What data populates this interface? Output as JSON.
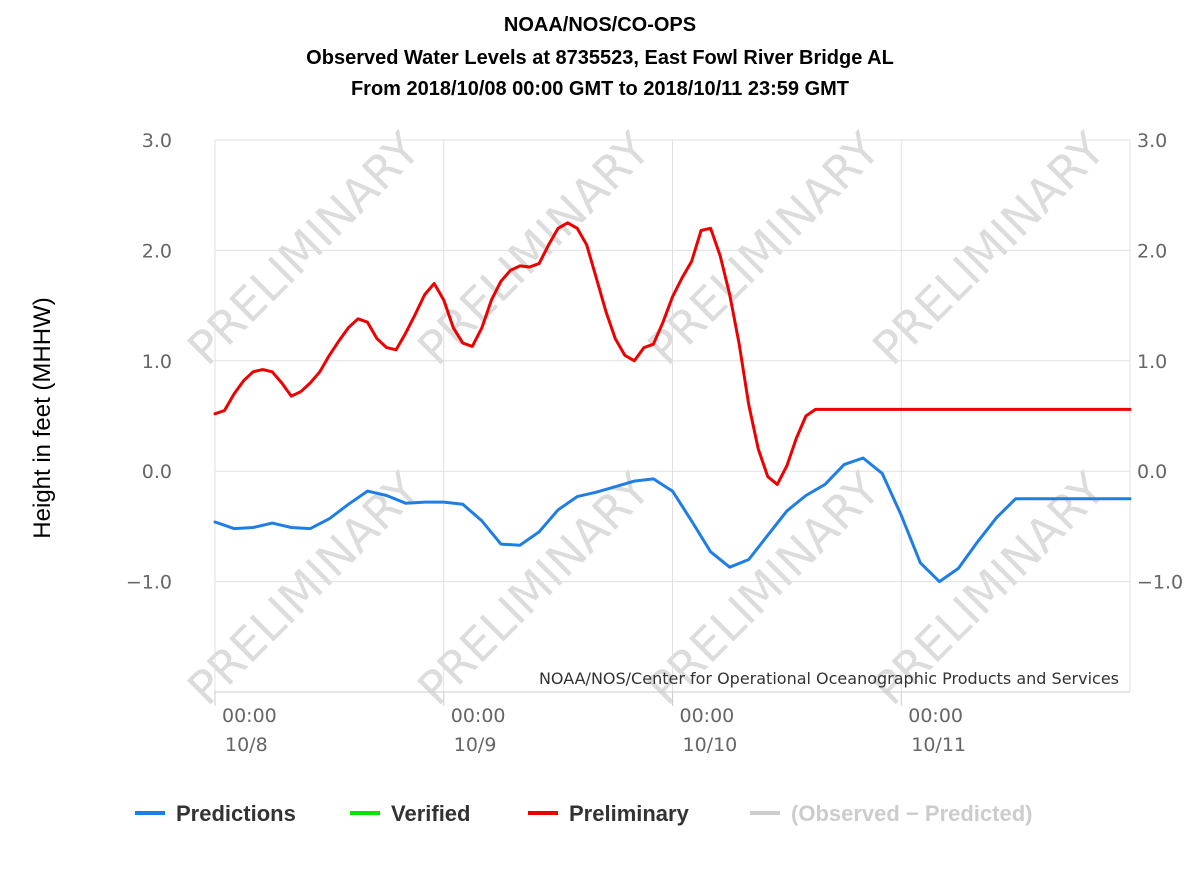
{
  "header": {
    "line1": "NOAA/NOS/CO-OPS",
    "line2": "Observed Water Levels at 8735523, East Fowl River Bridge AL",
    "line3": "From 2018/10/08 00:00 GMT to 2018/10/11 23:59 GMT"
  },
  "watermark": "PRELIMINARY",
  "credit": "NOAA/NOS/Center for Operational Oceanographic Products and Services",
  "chart_data": {
    "type": "line",
    "ylabel": "Height in feet (MHHW)",
    "ylim": [
      -2.0,
      3.0
    ],
    "yticks": [
      3.0,
      2.0,
      1.0,
      0.0,
      -1.0
    ],
    "ytick_labels": [
      "3.0",
      "2.0",
      "1.0",
      "0.0",
      "−1.0"
    ],
    "xlim_hours": [
      0,
      96
    ],
    "xticks": [
      {
        "hour": 0,
        "time": "00:00",
        "date": "10/8"
      },
      {
        "hour": 24,
        "time": "00:00",
        "date": "10/9"
      },
      {
        "hour": 48,
        "time": "00:00",
        "date": "10/10"
      },
      {
        "hour": 72,
        "time": "00:00",
        "date": "10/11"
      }
    ],
    "grid": true,
    "legend_position": "bottom",
    "series": [
      {
        "name": "Predictions",
        "color": "#1f7ee6",
        "x": [
          0,
          2,
          4,
          6,
          8,
          10,
          12,
          14,
          16,
          18,
          20,
          22,
          24,
          26,
          28,
          30,
          32,
          34,
          36,
          38,
          40,
          42,
          44,
          46,
          48,
          50,
          52,
          54,
          56,
          58,
          60,
          62,
          64,
          66,
          68,
          70,
          72,
          74,
          76,
          78,
          80,
          82,
          84,
          86,
          88,
          90,
          92,
          94,
          96
        ],
        "y": [
          -0.46,
          -0.52,
          -0.51,
          -0.47,
          -0.51,
          -0.52,
          -0.43,
          -0.3,
          -0.18,
          -0.22,
          -0.29,
          -0.28,
          -0.28,
          -0.3,
          -0.45,
          -0.66,
          -0.67,
          -0.55,
          -0.35,
          -0.23,
          -0.19,
          -0.14,
          -0.09,
          -0.07,
          -0.18,
          -0.45,
          -0.73,
          -0.87,
          -0.8,
          -0.58,
          -0.36,
          -0.22,
          -0.12,
          0.06,
          0.12,
          -0.02,
          -0.4,
          -0.83,
          -1.0,
          -0.88,
          -0.64,
          -0.42,
          -0.25,
          -0.25,
          -0.25,
          -0.25,
          -0.25,
          -0.25,
          -0.25
        ]
      },
      {
        "name": "Verified",
        "color": "#00e600",
        "x": [],
        "y": []
      },
      {
        "name": "Preliminary",
        "color": "#ee0000",
        "x": [
          0,
          1,
          2,
          3,
          4,
          5,
          6,
          7,
          8,
          9,
          10,
          11,
          12,
          13,
          14,
          15,
          16,
          17,
          18,
          19,
          20,
          21,
          22,
          23,
          24,
          25,
          26,
          27,
          28,
          29,
          30,
          31,
          32,
          33,
          34,
          35,
          36,
          37,
          38,
          39,
          40,
          41,
          42,
          43,
          44,
          45,
          46,
          47,
          48,
          49,
          50,
          51,
          52,
          53,
          54,
          55,
          56,
          57,
          58,
          59,
          60,
          61,
          62,
          63,
          64,
          65,
          66,
          67,
          68,
          69,
          70,
          71,
          72,
          73,
          74,
          75,
          76,
          77,
          78,
          79,
          80,
          81,
          82,
          83,
          84,
          85,
          86,
          87,
          88,
          89,
          90,
          91,
          92,
          93,
          94,
          95,
          96
        ],
        "y": [
          0.52,
          0.55,
          0.7,
          0.82,
          0.9,
          0.92,
          0.9,
          0.8,
          0.68,
          0.72,
          0.8,
          0.9,
          1.05,
          1.18,
          1.3,
          1.38,
          1.35,
          1.2,
          1.12,
          1.1,
          1.25,
          1.42,
          1.6,
          1.7,
          1.55,
          1.3,
          1.16,
          1.13,
          1.3,
          1.55,
          1.72,
          1.82,
          1.86,
          1.85,
          1.88,
          2.05,
          2.2,
          2.25,
          2.2,
          2.05,
          1.75,
          1.45,
          1.2,
          1.05,
          1.0,
          1.12,
          1.15,
          1.35,
          1.58,
          1.75,
          1.9,
          2.18,
          2.2,
          1.95,
          1.6,
          1.15,
          0.6,
          0.2,
          -0.05,
          -0.12,
          0.05,
          0.3,
          0.5,
          0.56,
          0.56,
          0.56,
          0.56,
          0.56,
          0.56,
          0.56,
          0.56,
          0.56,
          0.56,
          0.56,
          0.56,
          0.56,
          0.56,
          0.56,
          0.56,
          0.56,
          0.56,
          0.56,
          0.56,
          0.56,
          0.56,
          0.56,
          0.56,
          0.56,
          0.56,
          0.56,
          0.56,
          0.56,
          0.56,
          0.56,
          0.56,
          0.56,
          0.56
        ]
      },
      {
        "name": "(Observed − Predicted)",
        "color": "#cccccc",
        "x": [],
        "y": []
      }
    ]
  }
}
